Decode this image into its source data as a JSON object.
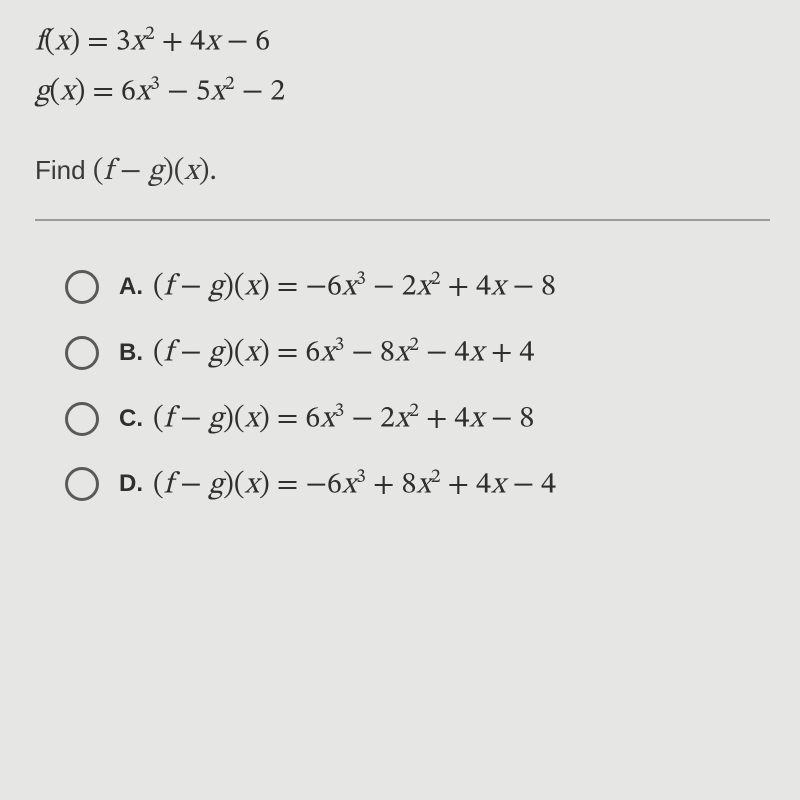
{
  "functions": {
    "f_html": "<span class='it'>f</span>(<span class='it'>x</span>) = 3<span class='it'>x</span><sup>2</sup> + 4<span class='it'>x</span> − 6",
    "g_html": "<span class='it'>g</span>(<span class='it'>x</span>) = 6<span class='it'>x</span><sup>3</sup> − 5<span class='it'>x</span><sup>2</sup> − 2"
  },
  "prompt": {
    "prefix": "Find ",
    "expr_html": "(<span class='it'>f</span> − <span class='it'>g</span>)(<span class='it'>x</span>).",
    "period": ""
  },
  "choices": [
    {
      "letter": "A.",
      "expr_html": "(<span class='it'>f</span> − <span class='it'>g</span>)(<span class='it'>x</span>) = −6<span class='it'>x</span><sup>3</sup> − 2<span class='it'>x</span><sup>2</sup> + 4<span class='it'>x</span> − 8"
    },
    {
      "letter": "B.",
      "expr_html": "(<span class='it'>f</span> − <span class='it'>g</span>)(<span class='it'>x</span>) = 6<span class='it'>x</span><sup>3</sup> − 8<span class='it'>x</span><sup>2</sup> − 4<span class='it'>x</span> + 4"
    },
    {
      "letter": "C.",
      "expr_html": "(<span class='it'>f</span> − <span class='it'>g</span>)(<span class='it'>x</span>) = 6<span class='it'>x</span><sup>3</sup> − 2<span class='it'>x</span><sup>2</sup> + 4<span class='it'>x</span> − 8"
    },
    {
      "letter": "D.",
      "expr_html": "(<span class='it'>f</span> − <span class='it'>g</span>)(<span class='it'>x</span>) = −6<span class='it'>x</span><sup>3</sup> + 8<span class='it'>x</span><sup>2</sup> + 4<span class='it'>x</span> − 4"
    }
  ],
  "style": {
    "background": "#e6e7e5",
    "text_color": "#2f2f2f",
    "divider_color": "#9b9b98",
    "radio_border": "#5a5a5a",
    "math_fontsize": 30,
    "label_fontsize": 24,
    "prompt_fontsize": 26
  }
}
